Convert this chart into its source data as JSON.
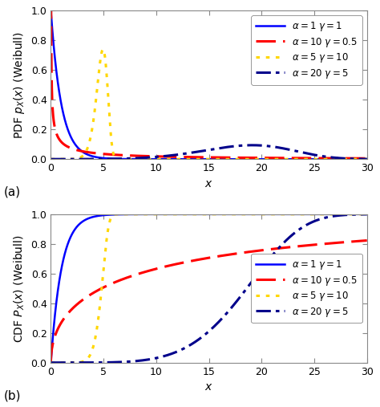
{
  "xlim": [
    0,
    30
  ],
  "pdf_ylim": [
    0,
    1.0
  ],
  "cdf_ylim": [
    0,
    1.0
  ],
  "xlabel": "x",
  "pdf_ylabel": "PDF $p_X(x)$ (Weibull)",
  "cdf_ylabel": "CDF $P_X(x)$ (Weibull)",
  "label_a": "(a)",
  "label_b": "(b)",
  "curves": [
    {
      "alpha": 1,
      "gamma": 1,
      "color": "#0000FF",
      "linestyle": "solid",
      "linewidth": 1.8,
      "label": "$\\alpha=1\\ \\gamma=1$"
    },
    {
      "alpha": 10,
      "gamma": 0.5,
      "color": "#FF0000",
      "linestyle": "dashed",
      "linewidth": 2.2,
      "label": "$\\alpha=10\\ \\gamma=0.5$"
    },
    {
      "alpha": 5,
      "gamma": 10,
      "color": "#FFD700",
      "linestyle": "dotted",
      "linewidth": 2.2,
      "label": "$\\alpha=5\\ \\gamma=10$"
    },
    {
      "alpha": 20,
      "gamma": 5,
      "color": "#00008B",
      "linestyle": "dashdot",
      "linewidth": 2.2,
      "label": "$\\alpha=20\\ \\gamma=5$"
    }
  ],
  "bg_color": "#ffffff",
  "legend_fontsize": 8.5,
  "axis_label_fontsize": 10,
  "tick_labelsize": 9,
  "xticks": [
    0,
    5,
    10,
    15,
    20,
    25,
    30
  ],
  "yticks": [
    0,
    0.2,
    0.4,
    0.6,
    0.8,
    1.0
  ]
}
